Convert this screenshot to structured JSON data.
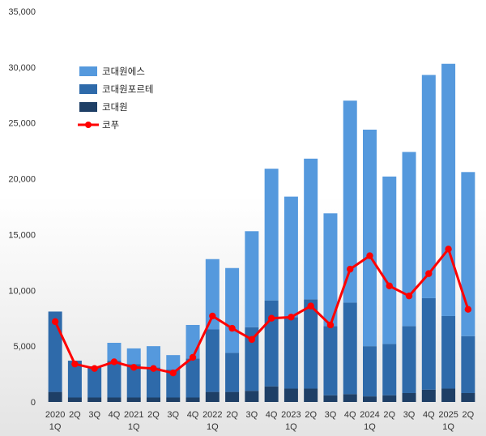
{
  "chart_data": {
    "type": "bar",
    "stacked": true,
    "title": "",
    "xlabel": "",
    "ylabel": "",
    "ylim": [
      0,
      35000
    ],
    "yticks": [
      0,
      5000,
      10000,
      15000,
      20000,
      25000,
      30000,
      35000
    ],
    "ytick_labels": [
      "0",
      "5,000",
      "10,000",
      "15,000",
      "20,000",
      "25,000",
      "30,000",
      "35,000"
    ],
    "grid": false,
    "legend_position": "top-left",
    "categories": [
      {
        "q": "2020",
        "y": "1Q"
      },
      {
        "q": "2Q",
        "y": ""
      },
      {
        "q": "3Q",
        "y": ""
      },
      {
        "q": "4Q",
        "y": ""
      },
      {
        "q": "2021",
        "y": "1Q"
      },
      {
        "q": "2Q",
        "y": ""
      },
      {
        "q": "3Q",
        "y": ""
      },
      {
        "q": "4Q",
        "y": ""
      },
      {
        "q": "2022",
        "y": "1Q"
      },
      {
        "q": "2Q",
        "y": ""
      },
      {
        "q": "3Q",
        "y": ""
      },
      {
        "q": "4Q",
        "y": ""
      },
      {
        "q": "2023",
        "y": "1Q"
      },
      {
        "q": "2Q",
        "y": ""
      },
      {
        "q": "3Q",
        "y": ""
      },
      {
        "q": "4Q",
        "y": ""
      },
      {
        "q": "2024",
        "y": "1Q"
      },
      {
        "q": "2Q",
        "y": ""
      },
      {
        "q": "3Q",
        "y": ""
      },
      {
        "q": "4Q",
        "y": ""
      },
      {
        "q": "2025",
        "y": "1Q"
      },
      {
        "q": "2Q",
        "y": ""
      }
    ],
    "series": [
      {
        "name": "코대원",
        "kind": "bar",
        "color": "#1e3f66",
        "values": [
          900,
          400,
          400,
          400,
          400,
          400,
          400,
          400,
          900,
          900,
          1000,
          1400,
          1200,
          1200,
          600,
          700,
          500,
          600,
          800,
          1100,
          1200,
          800
        ]
      },
      {
        "name": "코대원포르테",
        "kind": "bar",
        "color": "#2e6aaa",
        "values": [
          7200,
          3300,
          2800,
          3300,
          3000,
          2700,
          2500,
          3500,
          5600,
          3500,
          5700,
          7700,
          6400,
          8000,
          6200,
          8200,
          4500,
          4600,
          6000,
          8200,
          6500,
          5100
        ]
      },
      {
        "name": "코대원에스",
        "kind": "bar",
        "color": "#5599dd",
        "values": [
          0,
          0,
          0,
          1600,
          1400,
          1900,
          1300,
          3000,
          6300,
          7600,
          8600,
          11800,
          10800,
          12600,
          10100,
          18100,
          19400,
          15000,
          15600,
          20000,
          22600,
          14700
        ]
      },
      {
        "name": "코푸",
        "kind": "line",
        "color": "#ff0000",
        "values": [
          7200,
          3400,
          3000,
          3600,
          3100,
          3000,
          2600,
          4000,
          7700,
          6600,
          5600,
          7500,
          7600,
          8600,
          6900,
          11900,
          13100,
          10400,
          9500,
          11500,
          13700,
          8300
        ]
      }
    ]
  }
}
